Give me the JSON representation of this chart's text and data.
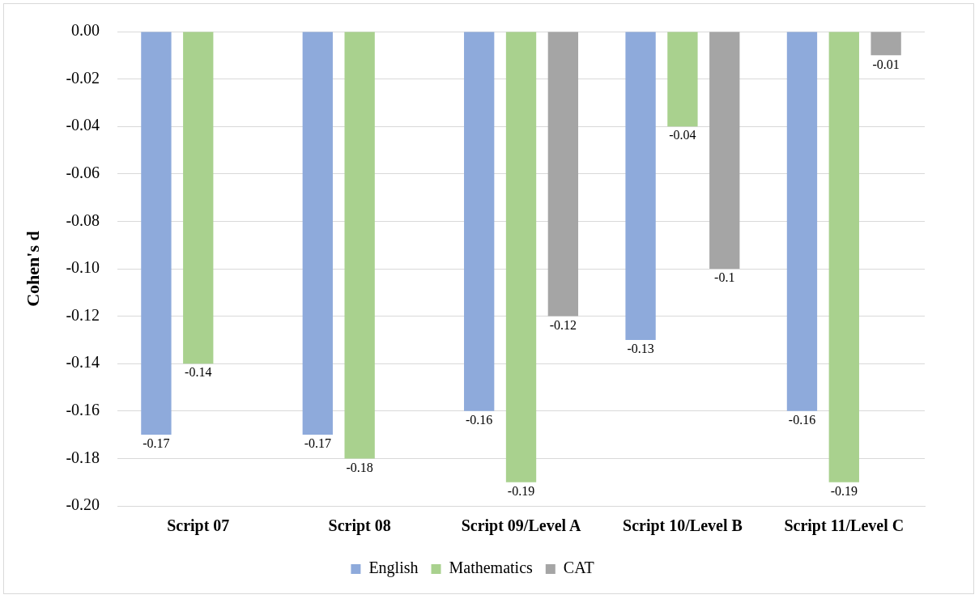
{
  "chart_data": {
    "type": "bar",
    "ylabel": "Cohen's d",
    "categories": [
      "Script 07",
      "Script 08",
      "Script 09/Level A",
      "Script 10/Level B",
      "Script 11/Level C"
    ],
    "series": [
      {
        "name": "English",
        "color": "#8eaadb",
        "values": [
          -0.17,
          -0.17,
          -0.16,
          -0.13,
          -0.16
        ]
      },
      {
        "name": "Mathematics",
        "color": "#a9d18e",
        "values": [
          -0.14,
          -0.18,
          -0.19,
          -0.04,
          -0.19
        ]
      },
      {
        "name": "CAT",
        "color": "#a5a5a5",
        "values": [
          null,
          null,
          -0.12,
          -0.1,
          -0.01
        ]
      }
    ],
    "ylim": [
      -0.2,
      0
    ],
    "yticks": [
      {
        "value": 0,
        "label": "0.00"
      },
      {
        "value": -0.02,
        "label": "-0.02"
      },
      {
        "value": -0.04,
        "label": "-0.04"
      },
      {
        "value": -0.06,
        "label": "-0.06"
      },
      {
        "value": -0.08,
        "label": "-0.08"
      },
      {
        "value": -0.1,
        "label": "-0.10"
      },
      {
        "value": -0.12,
        "label": "-0.12"
      },
      {
        "value": -0.14,
        "label": "-0.14"
      },
      {
        "value": -0.16,
        "label": "-0.16"
      },
      {
        "value": -0.18,
        "label": "-0.18"
      },
      {
        "value": -0.2,
        "label": "-0.20"
      }
    ],
    "grid": "y",
    "legend": "bottom",
    "data_labels": true
  }
}
